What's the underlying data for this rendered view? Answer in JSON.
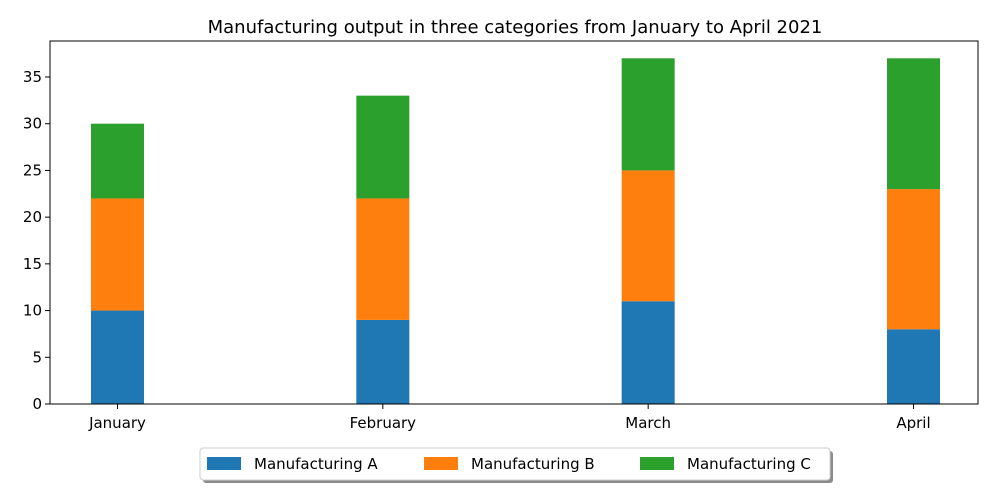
{
  "chart_data": {
    "type": "bar",
    "stacked": true,
    "title": "Manufacturing output in three categories from January to April 2021",
    "xlabel": "",
    "ylabel": "",
    "categories": [
      "January",
      "February",
      "March",
      "April"
    ],
    "series": [
      {
        "name": "Manufacturing A",
        "color": "#1f77b4",
        "values": [
          10,
          9,
          11,
          8
        ]
      },
      {
        "name": "Manufacturing B",
        "color": "#ff7f0e",
        "values": [
          12,
          13,
          14,
          15
        ]
      },
      {
        "name": "Manufacturing C",
        "color": "#2ca02c",
        "values": [
          8,
          11,
          12,
          14
        ]
      }
    ],
    "ylim": [
      0,
      38.85
    ],
    "yticks": [
      0,
      5,
      10,
      15,
      20,
      25,
      30,
      35
    ],
    "grid": false,
    "legend_position": "bottom-center"
  }
}
